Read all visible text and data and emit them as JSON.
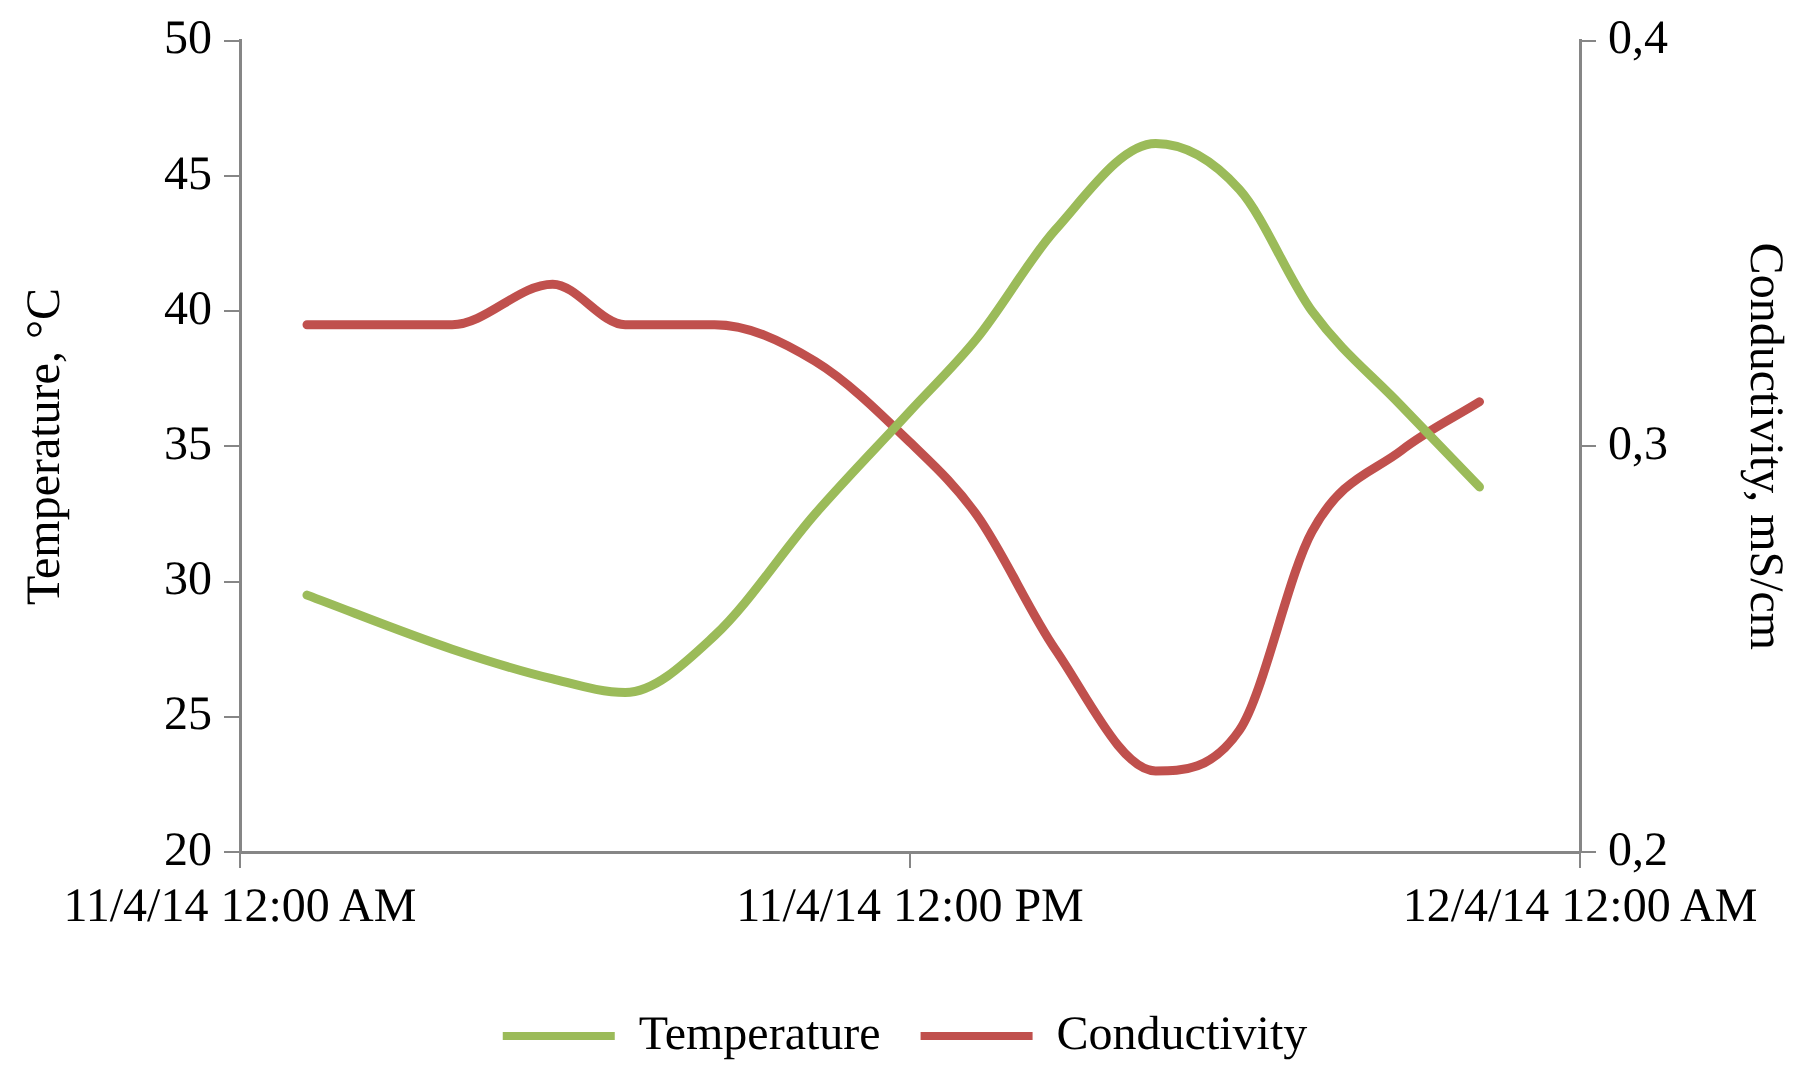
{
  "chart_data": {
    "type": "line",
    "ylabel": "Temperature, °C",
    "y2label": "Conductivity, mS/cm",
    "xlim": [
      "--04-11T00:00",
      "--04-12T00:00"
    ],
    "xticks": [
      {
        "value": "--04-11T00:00",
        "label": "11/4/14 12:00 AM"
      },
      {
        "value": "--04-11T12:00",
        "label": "11/4/14 12:00 PM"
      },
      {
        "value": "--04-12T00:00",
        "label": "12/4/14 12:00 AM"
      }
    ],
    "ylim": [
      20,
      50
    ],
    "yticks": [
      20,
      25,
      30,
      35,
      40,
      45,
      50
    ],
    "y2lim": [
      0.2,
      0.4
    ],
    "y2ticks": [
      {
        "value": 0.2,
        "label": "0,2"
      },
      {
        "value": 0.3,
        "label": "0,3"
      },
      {
        "value": 0.4,
        "label": "0,4"
      }
    ],
    "grid": false,
    "legend": "bottom",
    "marker": "none",
    "line_style": "solid",
    "x": [
      "--04-11T01:12",
      "--04-11T03:48",
      "--04-11T05:36",
      "--04-11T06:54",
      "--04-11T08:30",
      "--04-11T10:18",
      "--04-11T12:00",
      "--04-11T13:12",
      "--04-11T14:36",
      "--04-11T16:24",
      "--04-11T17:54",
      "--04-11T19:12",
      "--04-11T20:48",
      "--04-11T22:12"
    ],
    "series": [
      {
        "name": "Temperature",
        "color": "#9bbb59",
        "values": [
          29.5,
          27.5,
          26.4,
          25.9,
          28,
          32.5,
          36.3,
          39,
          43,
          46.2,
          44.5,
          40,
          36.5,
          33.5
        ]
      },
      {
        "name": "Conductivity",
        "color": "#c0504d",
        "axis": "y2",
        "values": [
          0.33,
          0.33,
          0.34,
          0.33,
          0.33,
          0.321,
          0.301,
          0.283,
          0.25,
          0.22,
          0.23,
          0.279,
          0.299,
          0.311
        ]
      }
    ]
  }
}
